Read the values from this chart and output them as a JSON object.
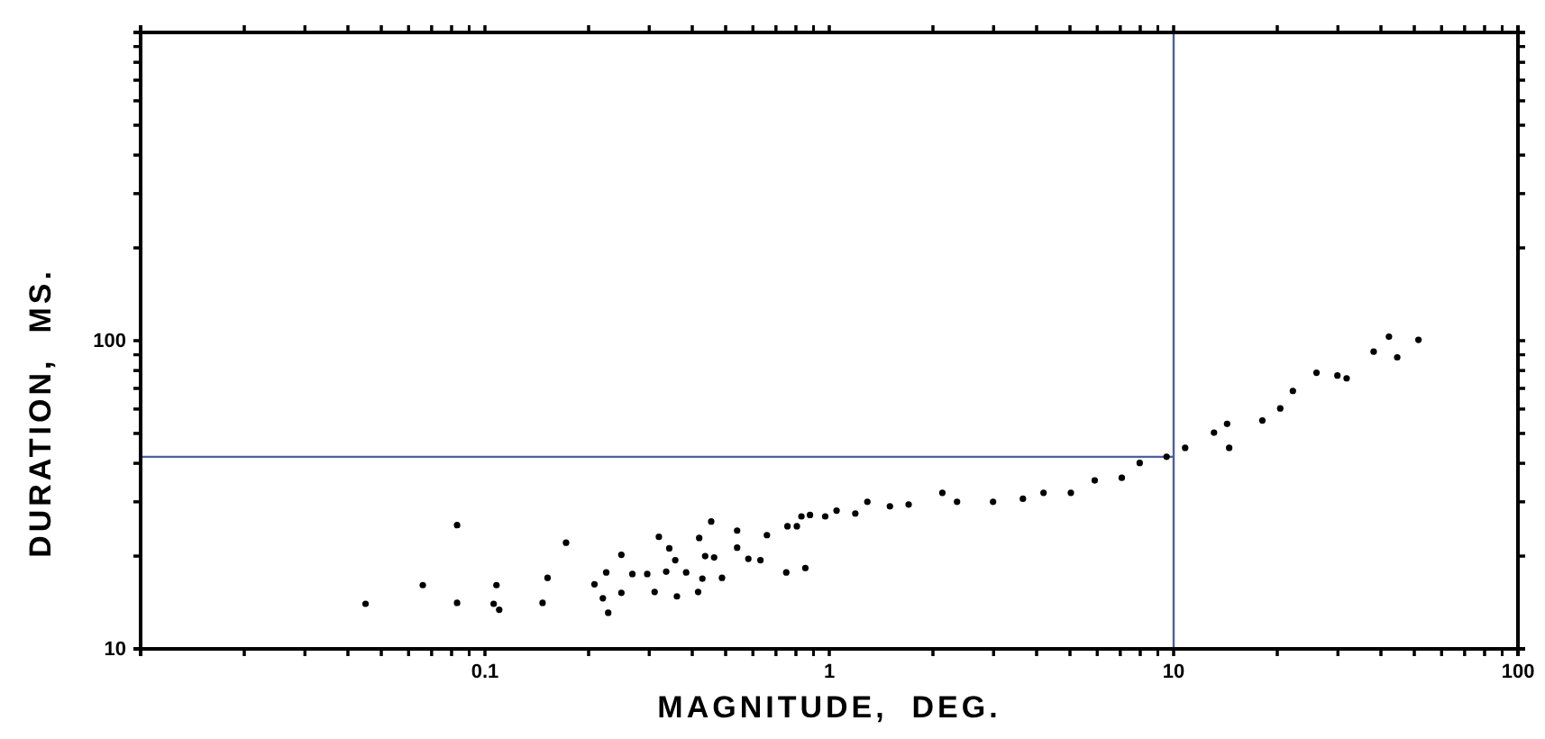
{
  "chart_data": {
    "type": "scatter",
    "xlabel": "MAGNITUDE,  DEG.",
    "ylabel": "DURATION,  MS.",
    "log": "xy",
    "grid": false,
    "marker": "circle",
    "xlim": [
      0.01,
      100
    ],
    "ylim": [
      10,
      1000
    ],
    "xticks": [
      {
        "value": 0.01,
        "label": null
      },
      {
        "value": 0.02,
        "label": null
      },
      {
        "value": 0.03,
        "label": null
      },
      {
        "value": 0.04,
        "label": null
      },
      {
        "value": 0.05,
        "label": null
      },
      {
        "value": 0.06,
        "label": null
      },
      {
        "value": 0.07,
        "label": null
      },
      {
        "value": 0.08,
        "label": null
      },
      {
        "value": 0.09,
        "label": null
      },
      {
        "value": 0.1,
        "label": "0.1"
      },
      {
        "value": 0.2,
        "label": null
      },
      {
        "value": 0.3,
        "label": null
      },
      {
        "value": 0.4,
        "label": null
      },
      {
        "value": 0.5,
        "label": null
      },
      {
        "value": 0.6,
        "label": null
      },
      {
        "value": 0.7,
        "label": null
      },
      {
        "value": 0.8,
        "label": null
      },
      {
        "value": 0.9,
        "label": null
      },
      1,
      {
        "value": 2,
        "label": null
      },
      {
        "value": 3,
        "label": null
      },
      {
        "value": 4,
        "label": null
      },
      {
        "value": 5,
        "label": null
      },
      {
        "value": 6,
        "label": null
      },
      {
        "value": 7,
        "label": null
      },
      {
        "value": 8,
        "label": null
      },
      {
        "value": 9,
        "label": null
      },
      10,
      {
        "value": 20,
        "label": null
      },
      {
        "value": 30,
        "label": null
      },
      {
        "value": 40,
        "label": null
      },
      {
        "value": 50,
        "label": null
      },
      {
        "value": 60,
        "label": null
      },
      {
        "value": 70,
        "label": null
      },
      {
        "value": 80,
        "label": null
      },
      {
        "value": 90,
        "label": null
      },
      100
    ],
    "yticks": [
      10,
      {
        "value": 20,
        "label": null
      },
      {
        "value": 30,
        "label": null
      },
      {
        "value": 40,
        "label": null
      },
      {
        "value": 50,
        "label": null
      },
      {
        "value": 60,
        "label": null
      },
      {
        "value": 70,
        "label": null
      },
      {
        "value": 80,
        "label": null
      },
      {
        "value": 90,
        "label": null
      },
      100,
      {
        "value": 200,
        "label": null
      },
      {
        "value": 300,
        "label": null
      },
      {
        "value": 400,
        "label": null
      },
      {
        "value": 500,
        "label": null
      },
      {
        "value": 600,
        "label": null
      },
      {
        "value": 700,
        "label": null
      },
      {
        "value": 800,
        "label": null
      },
      {
        "value": 900,
        "label": null
      },
      {
        "value": 1000,
        "label": null
      }
    ],
    "ref_lines": [
      {
        "axis": "x",
        "value": 10,
        "color": "#4a5fa8"
      },
      {
        "axis": "y",
        "value": 42,
        "color": "#4a5fa8"
      }
    ],
    "series": [
      {
        "color": "#000000",
        "x": [
          0.045,
          0.066,
          0.083,
          0.083,
          0.108,
          0.106,
          0.11,
          0.147,
          0.152,
          0.172,
          0.208,
          0.22,
          0.228,
          0.225,
          0.249,
          0.249,
          0.268,
          0.296,
          0.311,
          0.32,
          0.336,
          0.343,
          0.357,
          0.361,
          0.384,
          0.419,
          0.416,
          0.428,
          0.436,
          0.463,
          0.488,
          0.454,
          0.54,
          0.54,
          0.582,
          0.631,
          0.659,
          0.75,
          0.852,
          0.756,
          0.805,
          0.879,
          0.973,
          1.05,
          1.19,
          0.83,
          1.29,
          1.5,
          1.7,
          2.13,
          2.35,
          2.99,
          3.65,
          4.19,
          5.03,
          5.9,
          7.07,
          7.97,
          9.54,
          10.8,
          13.1,
          14.3,
          14.5,
          18.1,
          20.4,
          22.2,
          26.0,
          29.9,
          31.8,
          38.1,
          42.2,
          44.6,
          51.4
        ],
        "values": [
          14.0,
          16.1,
          25.2,
          14.1,
          16.1,
          14.0,
          13.4,
          14.1,
          17.0,
          22.1,
          16.2,
          14.6,
          13.1,
          17.7,
          20.2,
          15.2,
          17.5,
          17.5,
          15.3,
          23.1,
          17.8,
          21.2,
          19.4,
          14.8,
          17.7,
          22.9,
          15.3,
          16.9,
          20.0,
          19.8,
          17.0,
          25.9,
          24.2,
          21.3,
          19.6,
          19.4,
          23.4,
          17.7,
          18.3,
          25.0,
          25.0,
          27.2,
          26.9,
          28.1,
          27.5,
          26.9,
          30.0,
          29.0,
          29.4,
          32.1,
          30.0,
          30.0,
          30.7,
          32.1,
          32.1,
          35.2,
          35.9,
          40.1,
          42.0,
          44.9,
          50.3,
          53.7,
          44.9,
          55.1,
          60.3,
          68.7,
          78.7,
          77.1,
          75.5,
          92.1,
          103,
          88.3,
          100.6
        ]
      }
    ]
  }
}
